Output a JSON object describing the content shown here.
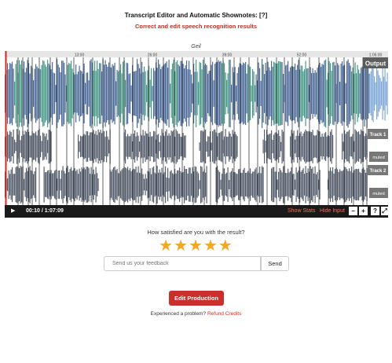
{
  "header": {
    "title": "Transcript Editor and Automatic Shownotes: [?]",
    "subtitle": "Correct and edit speech recognition results"
  },
  "waveform": {
    "top_label": "Geil",
    "timeline_ticks": [
      "13:00",
      "26:00",
      "39:00",
      "52:00",
      "1:05:00"
    ],
    "tracks": [
      {
        "label": "Output",
        "muted": false
      },
      {
        "label": "Track 1",
        "muted": true,
        "muted_label": "muted"
      },
      {
        "label": "Track 2",
        "muted": true,
        "muted_label": "muted"
      }
    ],
    "colors": {
      "output_fill": "#4e6c9a",
      "output_highlight": "#4a9a8a",
      "track_fill": "#555f6e",
      "cut_marker": "#222222",
      "gap_fill": "#e8e8e8"
    }
  },
  "player": {
    "play_icon": "▶",
    "time": "00:10 / 1:07:09",
    "show_stats": "Show Stats",
    "hide_input": "Hide Input",
    "zoom_out": "−",
    "zoom_in": "+",
    "help": "?",
    "fullscreen": "⤢"
  },
  "rating": {
    "question": "How satisfied are you with the result?",
    "stars": "★★★★★",
    "value": 5,
    "max": 5
  },
  "feedback": {
    "placeholder": "Send us your feedback",
    "send_label": "Send"
  },
  "actions": {
    "edit_production": "Edit Production",
    "problem_text": "Experienced a problem?",
    "refund_link": "Refund Credits"
  }
}
